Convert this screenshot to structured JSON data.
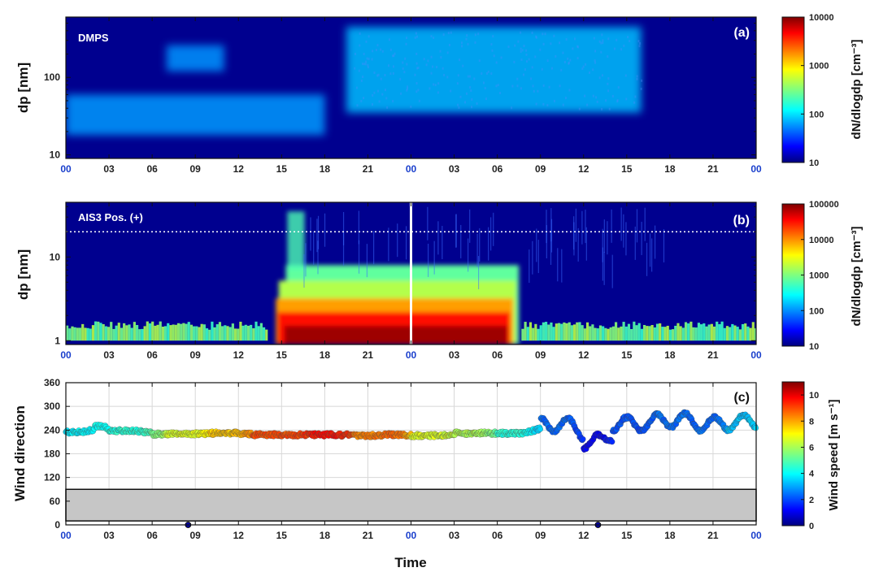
{
  "colors": {
    "background_blue": "#00008f",
    "jet": [
      "#00007f",
      "#0000ff",
      "#007fff",
      "#00ffff",
      "#7fff7f",
      "#ffff00",
      "#ff7f00",
      "#ff0000",
      "#7f0000"
    ],
    "gray_band": "#c6c6c6",
    "time_00_label": "#1a3fcc"
  },
  "chart_data": [
    {
      "type": "heatmap",
      "panel_label": "(a)",
      "annotation": "DMPS",
      "ylabel": "dp [nm]",
      "yscale": "log",
      "ylim": [
        9,
        600
      ],
      "yticks": [
        10,
        100
      ],
      "xlim": [
        0,
        48
      ],
      "xtick_labels": [
        "00",
        "03",
        "06",
        "09",
        "12",
        "15",
        "18",
        "21",
        "00",
        "03",
        "06",
        "09",
        "12",
        "15",
        "18",
        "21",
        "00"
      ],
      "colorbar": {
        "label": "dN/dlogdp [cm⁻³]",
        "scale": "log",
        "range": [
          10,
          10000
        ],
        "ticks": [
          "10000",
          "1000",
          "100",
          "10"
        ]
      },
      "features": [
        {
          "description": "weak mode",
          "time_range": [
            7,
            11
          ],
          "dp_range": [
            120,
            260
          ],
          "max_value": 40
        },
        {
          "description": "weak growing mode",
          "time_range": [
            0,
            18
          ],
          "dp_range": [
            18,
            60
          ],
          "max_value": 45
        },
        {
          "description": "strong accumulation mode",
          "time_range": [
            19.5,
            40
          ],
          "dp_range": [
            35,
            450
          ],
          "max_value": 90
        }
      ]
    },
    {
      "type": "heatmap",
      "panel_label": "(b)",
      "annotation": "AIS3 Pos. (+)",
      "ylabel": "dp [nm]",
      "yscale": "log",
      "ylim": [
        0.9,
        45
      ],
      "yticks": [
        1,
        10
      ],
      "reference_line_dp": 20,
      "marker_line_time": 24,
      "xlim": [
        0,
        48
      ],
      "xtick_labels": [
        "00",
        "03",
        "06",
        "09",
        "12",
        "15",
        "18",
        "21",
        "00",
        "03",
        "06",
        "09",
        "12",
        "15",
        "18",
        "21",
        "00"
      ],
      "colorbar": {
        "label": "dN/dlogdp [cm⁻³]",
        "scale": "log",
        "range": [
          10,
          100000
        ],
        "ticks": [
          "100000",
          "10000",
          "1000",
          "100",
          "10"
        ]
      },
      "features": [
        {
          "description": "cluster ion band",
          "time_range": [
            0,
            48
          ],
          "dp_range": [
            1,
            1.6
          ],
          "max_value": 800
        },
        {
          "description": "intense ion event",
          "time_range": [
            14,
            31.5
          ],
          "dp_range": [
            1,
            8
          ],
          "max_value": 80000
        }
      ]
    },
    {
      "type": "scatter",
      "panel_label": "(c)",
      "ylabel": "Wind direction",
      "xlabel": "Time",
      "ylim": [
        0,
        360
      ],
      "yticks": [
        0,
        60,
        120,
        180,
        240,
        300,
        360
      ],
      "shaded_band": [
        10,
        90
      ],
      "xlim": [
        0,
        48
      ],
      "xtick_labels": [
        "00",
        "03",
        "06",
        "09",
        "12",
        "15",
        "18",
        "21",
        "00",
        "03",
        "06",
        "09",
        "12",
        "15",
        "18",
        "21",
        "00"
      ],
      "colorbar": {
        "label": "Wind speed [m s⁻¹]",
        "range": [
          0,
          11
        ],
        "ticks": [
          "10",
          "8",
          "6",
          "4",
          "2",
          "0"
        ]
      },
      "outliers": [
        {
          "t": 8.5,
          "dir": 0,
          "speed": 0.5
        },
        {
          "t": 37,
          "dir": 0,
          "speed": 0.5
        }
      ],
      "segments": [
        {
          "t0": 0,
          "t1": 2,
          "dir": 235,
          "speed": 4.0
        },
        {
          "t0": 2,
          "t1": 3,
          "dir": 250,
          "speed": 4.2
        },
        {
          "t0": 3,
          "t1": 6,
          "dir": 238,
          "speed": 4.5
        },
        {
          "t0": 6,
          "t1": 7,
          "dir": 230,
          "speed": 5.5
        },
        {
          "t0": 7,
          "t1": 10,
          "dir": 230,
          "speed": 6.5
        },
        {
          "t0": 10,
          "t1": 13,
          "dir": 232,
          "speed": 7.5
        },
        {
          "t0": 13,
          "t1": 17,
          "dir": 228,
          "speed": 8.8
        },
        {
          "t0": 17,
          "t1": 20,
          "dir": 228,
          "speed": 9.5
        },
        {
          "t0": 20,
          "t1": 22,
          "dir": 226,
          "speed": 8.3
        },
        {
          "t0": 22,
          "t1": 24,
          "dir": 228,
          "speed": 8.5
        },
        {
          "t0": 24,
          "t1": 27,
          "dir": 226,
          "speed": 6.5
        },
        {
          "t0": 27,
          "t1": 30,
          "dir": 232,
          "speed": 6.0
        },
        {
          "t0": 30,
          "t1": 33,
          "dir": 232,
          "speed": 4.5
        },
        {
          "t0": 33,
          "t1": 36,
          "dir": 255,
          "speed": 2.5
        },
        {
          "t0": 36,
          "t1": 38,
          "dir": 210,
          "speed": 1.2
        },
        {
          "t0": 38,
          "t1": 41,
          "dir": 255,
          "speed": 2.2
        },
        {
          "t0": 41,
          "t1": 44,
          "dir": 265,
          "speed": 2.5
        },
        {
          "t0": 44,
          "t1": 46,
          "dir": 255,
          "speed": 2.5
        },
        {
          "t0": 46,
          "t1": 48,
          "dir": 260,
          "speed": 3.5
        }
      ]
    }
  ]
}
